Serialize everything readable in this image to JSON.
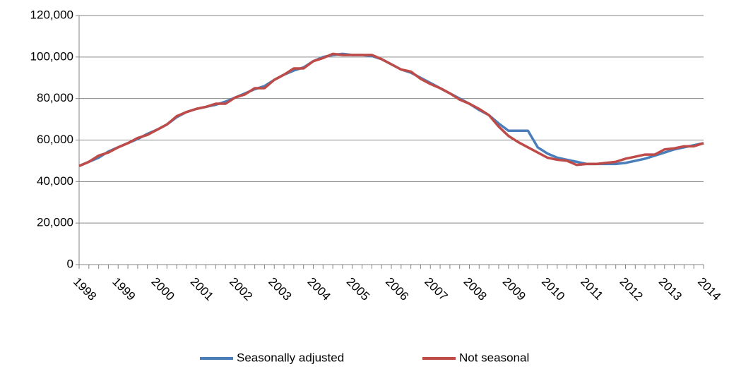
{
  "chart_data": {
    "type": "line",
    "categories": [
      "1998",
      null,
      null,
      null,
      "1999",
      null,
      null,
      null,
      "2000",
      null,
      null,
      null,
      "2001",
      null,
      null,
      null,
      "2002",
      null,
      null,
      null,
      "2003",
      null,
      null,
      null,
      "2004",
      null,
      null,
      null,
      "2005",
      null,
      null,
      null,
      "2006",
      null,
      null,
      null,
      "2007",
      null,
      null,
      null,
      "2008",
      null,
      null,
      null,
      "2009",
      null,
      null,
      null,
      "2010",
      null,
      null,
      null,
      "2011",
      null,
      null,
      null,
      "2012",
      null,
      null,
      null,
      "2013",
      null,
      null,
      null,
      "2014"
    ],
    "series": [
      {
        "name": "Seasonally adjusted",
        "color": "#4a7ebb",
        "values": [
          47500,
          49500,
          51500,
          54500,
          56500,
          58500,
          60500,
          63000,
          65000,
          67500,
          71000,
          73500,
          75000,
          76000,
          77000,
          78500,
          80500,
          82500,
          84500,
          86000,
          89000,
          91500,
          93500,
          95000,
          98000,
          100000,
          101000,
          101500,
          101000,
          101000,
          100500,
          99000,
          96500,
          94000,
          92500,
          90000,
          87500,
          85000,
          82500,
          80000,
          77500,
          74500,
          72000,
          68000,
          64500,
          64500,
          64500,
          56500,
          53500,
          51500,
          50500,
          49500,
          48500,
          48500,
          48500,
          48500,
          49000,
          50000,
          51000,
          52500,
          54000,
          55500,
          56500,
          57500,
          58500
        ]
      },
      {
        "name": "Not seasonal",
        "color": "#be4b48",
        "values": [
          47500,
          49500,
          52500,
          54000,
          56500,
          58500,
          61000,
          62500,
          65000,
          67500,
          71500,
          73500,
          75000,
          76000,
          77500,
          77500,
          80500,
          82000,
          85000,
          85000,
          89000,
          91500,
          94500,
          94500,
          98000,
          99500,
          101500,
          101000,
          101000,
          101000,
          101000,
          99000,
          96500,
          94000,
          93000,
          89500,
          87000,
          85000,
          82500,
          79500,
          77500,
          75000,
          72000,
          66500,
          62000,
          59000,
          56500,
          54000,
          51500,
          50500,
          50000,
          48000,
          48500,
          48500,
          49000,
          49500,
          51000,
          52000,
          53000,
          53000,
          55500,
          56000,
          57000,
          57000,
          58500
        ]
      }
    ],
    "ylim": [
      0,
      120000
    ],
    "yticks": [
      0,
      {
        "value": 20000,
        "label": "20,000"
      },
      {
        "value": 40000,
        "label": "40,000"
      },
      {
        "value": 60000,
        "label": "60,000"
      },
      {
        "value": 80000,
        "label": "80,000"
      },
      {
        "value": 100000,
        "label": "100,000"
      },
      {
        "value": 120000,
        "label": "120,000"
      }
    ],
    "grid": true,
    "legend": "bottom"
  }
}
